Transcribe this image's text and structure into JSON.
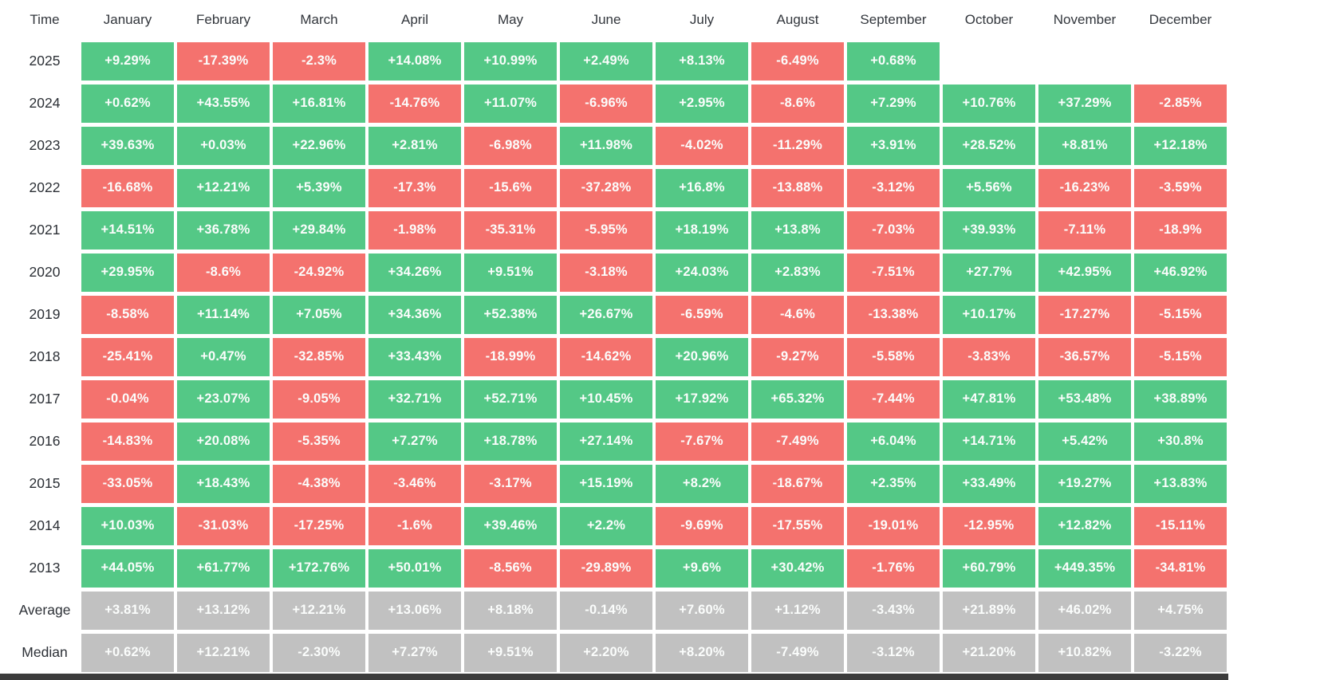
{
  "chart_data": {
    "type": "heatmap",
    "corner_label": "Time",
    "columns": [
      "January",
      "February",
      "March",
      "April",
      "May",
      "June",
      "July",
      "August",
      "September",
      "October",
      "November",
      "December"
    ],
    "rows": [
      {
        "label": "2025",
        "kind": "year",
        "values": [
          "+9.29%",
          "-17.39%",
          "-2.3%",
          "+14.08%",
          "+10.99%",
          "+2.49%",
          "+8.13%",
          "-6.49%",
          "+0.68%",
          null,
          null,
          null
        ]
      },
      {
        "label": "2024",
        "kind": "year",
        "values": [
          "+0.62%",
          "+43.55%",
          "+16.81%",
          "-14.76%",
          "+11.07%",
          "-6.96%",
          "+2.95%",
          "-8.6%",
          "+7.29%",
          "+10.76%",
          "+37.29%",
          "-2.85%"
        ]
      },
      {
        "label": "2023",
        "kind": "year",
        "values": [
          "+39.63%",
          "+0.03%",
          "+22.96%",
          "+2.81%",
          "-6.98%",
          "+11.98%",
          "-4.02%",
          "-11.29%",
          "+3.91%",
          "+28.52%",
          "+8.81%",
          "+12.18%"
        ]
      },
      {
        "label": "2022",
        "kind": "year",
        "values": [
          "-16.68%",
          "+12.21%",
          "+5.39%",
          "-17.3%",
          "-15.6%",
          "-37.28%",
          "+16.8%",
          "-13.88%",
          "-3.12%",
          "+5.56%",
          "-16.23%",
          "-3.59%"
        ]
      },
      {
        "label": "2021",
        "kind": "year",
        "values": [
          "+14.51%",
          "+36.78%",
          "+29.84%",
          "-1.98%",
          "-35.31%",
          "-5.95%",
          "+18.19%",
          "+13.8%",
          "-7.03%",
          "+39.93%",
          "-7.11%",
          "-18.9%"
        ]
      },
      {
        "label": "2020",
        "kind": "year",
        "values": [
          "+29.95%",
          "-8.6%",
          "-24.92%",
          "+34.26%",
          "+9.51%",
          "-3.18%",
          "+24.03%",
          "+2.83%",
          "-7.51%",
          "+27.7%",
          "+42.95%",
          "+46.92%"
        ]
      },
      {
        "label": "2019",
        "kind": "year",
        "values": [
          "-8.58%",
          "+11.14%",
          "+7.05%",
          "+34.36%",
          "+52.38%",
          "+26.67%",
          "-6.59%",
          "-4.6%",
          "-13.38%",
          "+10.17%",
          "-17.27%",
          "-5.15%"
        ]
      },
      {
        "label": "2018",
        "kind": "year",
        "values": [
          "-25.41%",
          "+0.47%",
          "-32.85%",
          "+33.43%",
          "-18.99%",
          "-14.62%",
          "+20.96%",
          "-9.27%",
          "-5.58%",
          "-3.83%",
          "-36.57%",
          "-5.15%"
        ]
      },
      {
        "label": "2017",
        "kind": "year",
        "values": [
          "-0.04%",
          "+23.07%",
          "-9.05%",
          "+32.71%",
          "+52.71%",
          "+10.45%",
          "+17.92%",
          "+65.32%",
          "-7.44%",
          "+47.81%",
          "+53.48%",
          "+38.89%"
        ]
      },
      {
        "label": "2016",
        "kind": "year",
        "values": [
          "-14.83%",
          "+20.08%",
          "-5.35%",
          "+7.27%",
          "+18.78%",
          "+27.14%",
          "-7.67%",
          "-7.49%",
          "+6.04%",
          "+14.71%",
          "+5.42%",
          "+30.8%"
        ]
      },
      {
        "label": "2015",
        "kind": "year",
        "values": [
          "-33.05%",
          "+18.43%",
          "-4.38%",
          "-3.46%",
          "-3.17%",
          "+15.19%",
          "+8.2%",
          "-18.67%",
          "+2.35%",
          "+33.49%",
          "+19.27%",
          "+13.83%"
        ]
      },
      {
        "label": "2014",
        "kind": "year",
        "values": [
          "+10.03%",
          "-31.03%",
          "-17.25%",
          "-1.6%",
          "+39.46%",
          "+2.2%",
          "-9.69%",
          "-17.55%",
          "-19.01%",
          "-12.95%",
          "+12.82%",
          "-15.11%"
        ]
      },
      {
        "label": "2013",
        "kind": "year",
        "values": [
          "+44.05%",
          "+61.77%",
          "+172.76%",
          "+50.01%",
          "-8.56%",
          "-29.89%",
          "+9.6%",
          "+30.42%",
          "-1.76%",
          "+60.79%",
          "+449.35%",
          "-34.81%"
        ]
      },
      {
        "label": "Average",
        "kind": "summary",
        "values": [
          "+3.81%",
          "+13.12%",
          "+12.21%",
          "+13.06%",
          "+8.18%",
          "-0.14%",
          "+7.60%",
          "+1.12%",
          "-3.43%",
          "+21.89%",
          "+46.02%",
          "+4.75%"
        ]
      },
      {
        "label": "Median",
        "kind": "summary",
        "values": [
          "+0.62%",
          "+12.21%",
          "-2.30%",
          "+7.27%",
          "+9.51%",
          "+2.20%",
          "+8.20%",
          "-7.49%",
          "-3.12%",
          "+21.20%",
          "+10.82%",
          "-3.22%"
        ]
      }
    ],
    "legend": {
      "positive_color": "#54c886",
      "negative_color": "#f4726e",
      "summary_color": "#c1c1c1",
      "cell_text_color": "#fbfdfc",
      "label_text_color": "#2c3036"
    }
  }
}
